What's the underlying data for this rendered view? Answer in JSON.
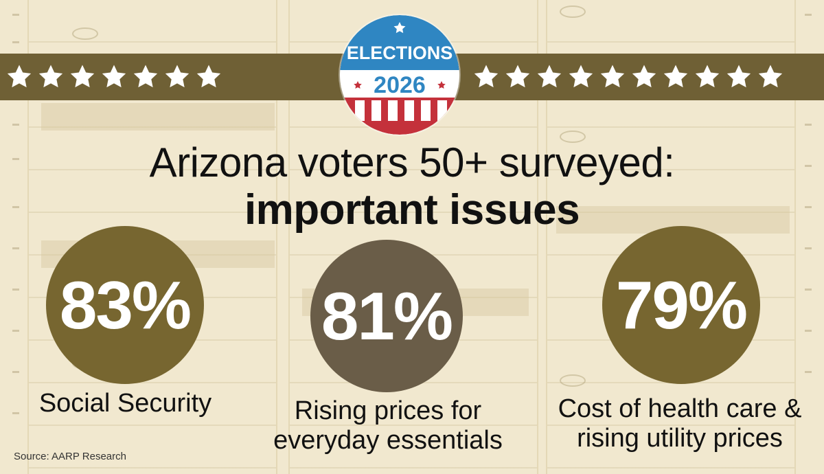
{
  "badge": {
    "line1": "ELECTIONS",
    "line2": "2026"
  },
  "title": {
    "line1": "Arizona voters 50+ surveyed:",
    "line2": "important issues"
  },
  "stats": [
    {
      "value": "83%",
      "label": "Social Security",
      "color": "#776630"
    },
    {
      "value": "81%",
      "label_line1": "Rising prices for",
      "label_line2": "everyday essentials",
      "color": "#6a5d48"
    },
    {
      "value": "79%",
      "label_line1": "Cost of health care &",
      "label_line2": "rising utility prices",
      "color": "#776630"
    }
  ],
  "source": "Source: AARP Research",
  "colors": {
    "background": "#f1e8cf",
    "stripe": "#6f6035",
    "badge_blue": "#2f86c2",
    "badge_red": "#c4313b",
    "star": "#ffffff"
  },
  "icons": [
    "star-icon",
    "elections-badge"
  ]
}
